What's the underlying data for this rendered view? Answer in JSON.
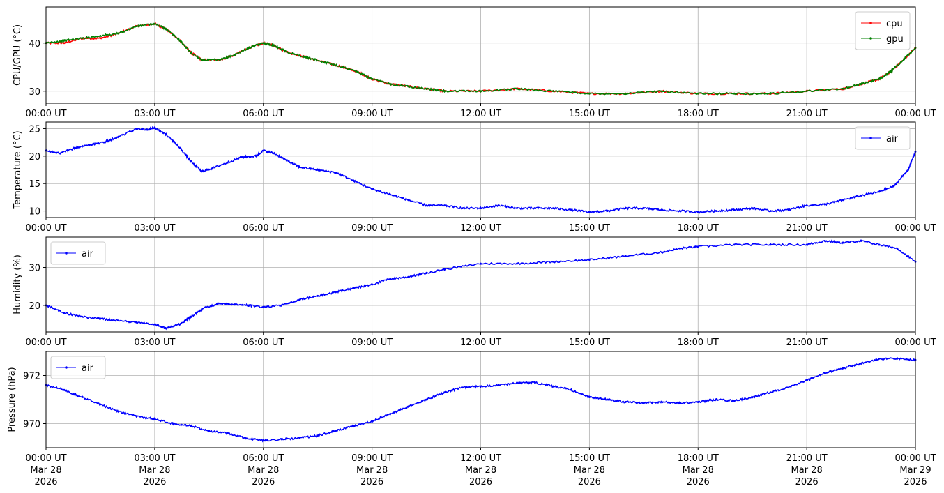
{
  "chart_data": [
    {
      "type": "line",
      "ylabel": "CPU/GPU (°C)",
      "xlim": [
        "00:00 UT",
        "00:00 UT"
      ],
      "x_hours": [
        0,
        3,
        6,
        9,
        12,
        15,
        18,
        21,
        24
      ],
      "xticks": [
        "00:00 UT",
        "03:00 UT",
        "06:00 UT",
        "09:00 UT",
        "12:00 UT",
        "15:00 UT",
        "18:00 UT",
        "21:00 UT",
        "00:00 UT"
      ],
      "ylim": [
        27.5,
        47.5
      ],
      "yticks": [
        30,
        40
      ],
      "grid": true,
      "legend": "top-right",
      "series": [
        {
          "name": "cpu",
          "color": "#ff0000",
          "x": [
            0,
            0.5,
            1,
            1.5,
            2,
            2.5,
            3,
            3.3,
            3.7,
            4,
            4.3,
            4.8,
            5.2,
            5.6,
            6,
            6.3,
            6.7,
            7.2,
            7.7,
            8.2,
            8.6,
            9,
            9.5,
            10,
            10.5,
            11,
            12,
            13,
            14,
            15,
            16,
            17,
            18,
            19,
            20,
            21,
            22,
            22.5,
            23,
            23.3,
            23.6,
            24
          ],
          "y": [
            40,
            40,
            41,
            41,
            42,
            43.5,
            44,
            43,
            40.5,
            38,
            36.5,
            36.5,
            37.5,
            39,
            40,
            39.5,
            38,
            37,
            36,
            35,
            34,
            32.5,
            31.5,
            31,
            30.5,
            30,
            30,
            30.5,
            30,
            29.5,
            29.5,
            30,
            29.5,
            29.5,
            29.5,
            30,
            30.5,
            31.5,
            32.5,
            34,
            36,
            39
          ]
        },
        {
          "name": "gpu",
          "color": "#008000",
          "x": [
            0,
            0.5,
            1,
            1.5,
            2,
            2.5,
            3,
            3.3,
            3.7,
            4,
            4.3,
            4.8,
            5.2,
            5.6,
            6,
            6.3,
            6.7,
            7.2,
            7.7,
            8.2,
            8.6,
            9,
            9.5,
            10,
            10.5,
            11,
            12,
            13,
            14,
            15,
            16,
            17,
            18,
            19,
            20,
            21,
            22,
            22.5,
            23,
            23.3,
            23.6,
            24
          ],
          "y": [
            40,
            40.5,
            41,
            41.5,
            42,
            43.5,
            44,
            43,
            40.5,
            38,
            36.5,
            36.5,
            37.5,
            39,
            40,
            39.5,
            38,
            37,
            36,
            35,
            34,
            32.5,
            31.5,
            31,
            30.5,
            30,
            30,
            30.5,
            30,
            29.5,
            29.5,
            30,
            29.5,
            29.5,
            29.5,
            30,
            30.5,
            31.5,
            32.5,
            34,
            36,
            39
          ]
        }
      ]
    },
    {
      "type": "line",
      "ylabel": "Temperature (°C)",
      "x_hours": [
        0,
        3,
        6,
        9,
        12,
        15,
        18,
        21,
        24
      ],
      "xticks": [
        "00:00 UT",
        "03:00 UT",
        "06:00 UT",
        "09:00 UT",
        "12:00 UT",
        "15:00 UT",
        "18:00 UT",
        "21:00 UT",
        "00:00 UT"
      ],
      "ylim": [
        8.8,
        26.2
      ],
      "yticks": [
        10,
        15,
        20,
        25
      ],
      "grid": true,
      "legend": "top-right",
      "series": [
        {
          "name": "air",
          "color": "#0000ff",
          "x": [
            0,
            0.4,
            0.8,
            1.2,
            1.6,
            2,
            2.5,
            2.8,
            3,
            3.3,
            3.7,
            4,
            4.3,
            4.6,
            5,
            5.4,
            5.8,
            6,
            6.3,
            6.7,
            7,
            7.5,
            8,
            8.5,
            9,
            9.5,
            10,
            10.5,
            11,
            11.5,
            12,
            12.5,
            13,
            13.5,
            14,
            14.5,
            15,
            15.5,
            16,
            16.5,
            17,
            17.5,
            18,
            18.5,
            19,
            19.5,
            20,
            20.5,
            21,
            21.5,
            22,
            22.5,
            23,
            23.4,
            23.8,
            24
          ],
          "y": [
            21,
            20.5,
            21.5,
            22,
            22.5,
            23.5,
            25,
            24.8,
            25.2,
            24,
            21.5,
            19,
            17.2,
            17.8,
            18.8,
            19.8,
            20,
            21,
            20.5,
            19,
            18,
            17.5,
            17,
            15.5,
            14,
            13,
            12,
            11,
            11,
            10.5,
            10.5,
            11,
            10.5,
            10.5,
            10.5,
            10.2,
            9.8,
            10,
            10.5,
            10.5,
            10.2,
            10,
            9.8,
            10,
            10.2,
            10.5,
            10,
            10.2,
            11,
            11.2,
            12,
            12.8,
            13.5,
            14.5,
            17.5,
            20.8
          ]
        }
      ]
    },
    {
      "type": "line",
      "ylabel": "Humidity (%)",
      "x_hours": [
        0,
        3,
        6,
        9,
        12,
        15,
        18,
        21,
        24
      ],
      "xticks": [
        "00:00 UT",
        "03:00 UT",
        "06:00 UT",
        "09:00 UT",
        "12:00 UT",
        "15:00 UT",
        "18:00 UT",
        "21:00 UT",
        "00:00 UT"
      ],
      "ylim": [
        13,
        38
      ],
      "yticks": [
        20,
        30
      ],
      "grid": true,
      "legend": "top-left",
      "series": [
        {
          "name": "air",
          "color": "#0000ff",
          "x": [
            0,
            0.5,
            1,
            1.5,
            2,
            2.5,
            3,
            3.3,
            3.7,
            4,
            4.4,
            4.8,
            5.2,
            5.6,
            6,
            6.5,
            7,
            7.5,
            8,
            8.5,
            9,
            9.5,
            10,
            10.5,
            11,
            12,
            13,
            14,
            15,
            16,
            17,
            17.5,
            18,
            19,
            20,
            21,
            21.5,
            22,
            22.5,
            23,
            23.5,
            24
          ],
          "y": [
            20,
            18,
            17,
            16.5,
            16,
            15.5,
            15,
            14,
            15,
            17,
            19.5,
            20.5,
            20.2,
            20,
            19.5,
            20,
            21.5,
            22.5,
            23.5,
            24.5,
            25.5,
            27,
            27.5,
            28.5,
            29.5,
            31,
            31,
            31.5,
            32,
            33,
            34,
            35,
            35.5,
            36,
            36,
            36,
            37,
            36.5,
            37,
            36,
            35,
            31.5
          ]
        }
      ]
    },
    {
      "type": "line",
      "ylabel": "Pressure (hPa)",
      "x_hours": [
        0,
        3,
        6,
        9,
        12,
        15,
        18,
        21,
        24
      ],
      "xticks": [
        "00:00 UT\nMar 28\n2026",
        "03:00 UT\nMar 28\n2026",
        "06:00 UT\nMar 28\n2026",
        "09:00 UT\nMar 28\n2026",
        "12:00 UT\nMar 28\n2026",
        "15:00 UT\nMar 28\n2026",
        "18:00 UT\nMar 28\n2026",
        "21:00 UT\nMar 28\n2026",
        "00:00 UT\nMar 29\n2026"
      ],
      "ylim": [
        969,
        973
      ],
      "yticks": [
        970,
        972
      ],
      "grid": true,
      "legend": "top-left",
      "series": [
        {
          "name": "air",
          "color": "#0000ff",
          "x": [
            0,
            0.5,
            1,
            1.5,
            2,
            2.5,
            3,
            3.5,
            4,
            4.5,
            5,
            5.5,
            6,
            6.5,
            7,
            7.5,
            8,
            8.5,
            9,
            9.5,
            10,
            10.5,
            11,
            11.5,
            12,
            12.5,
            13,
            13.5,
            14,
            14.5,
            15,
            15.5,
            16,
            16.5,
            17,
            17.5,
            18,
            18.5,
            19,
            19.5,
            20,
            20.5,
            21,
            21.5,
            22,
            22.5,
            23,
            23.5,
            24
          ],
          "y": [
            971.6,
            971.4,
            971.1,
            970.8,
            970.5,
            970.3,
            970.2,
            970.0,
            969.9,
            969.7,
            969.6,
            969.4,
            969.3,
            969.35,
            969.4,
            969.5,
            969.7,
            969.9,
            970.1,
            970.4,
            970.7,
            971.0,
            971.3,
            971.5,
            971.55,
            971.6,
            971.7,
            971.7,
            971.55,
            971.4,
            971.1,
            971.0,
            970.9,
            970.85,
            970.9,
            970.85,
            970.9,
            971.0,
            970.95,
            971.1,
            971.3,
            971.5,
            971.8,
            972.1,
            972.3,
            972.5,
            972.7,
            972.7,
            972.65
          ]
        }
      ]
    }
  ]
}
